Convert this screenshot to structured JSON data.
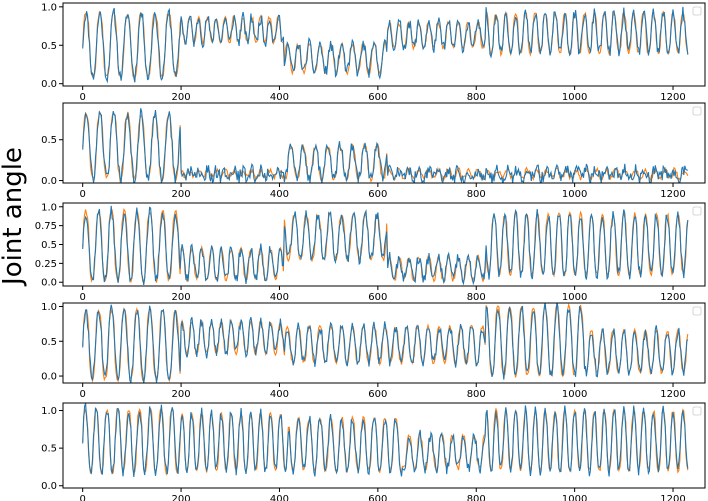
{
  "figure": {
    "ylabel": "Joint angle"
  },
  "colors": {
    "series_blue": "#1f77b4",
    "series_orange": "#ff7f0e",
    "axes": "#000000",
    "background": "#ffffff"
  },
  "chart_data": [
    {
      "type": "line",
      "panel": 1,
      "xlim": [
        -40,
        1265
      ],
      "ylim": [
        -0.03,
        1.05
      ],
      "xticks": [
        0,
        200,
        400,
        600,
        800,
        1000,
        1200
      ],
      "xtick_labels": [
        "0",
        "200",
        "400",
        "600",
        "800",
        "1000",
        "1200"
      ],
      "yticks": [
        0.0,
        0.5,
        1.0
      ],
      "ytick_labels": [
        "0.0",
        "0.5",
        "1.0"
      ],
      "legend": "top-right",
      "segments": [
        {
          "from": 0,
          "to": 200,
          "period": 28,
          "center": 0.5,
          "amp": 0.42,
          "phase": 0
        },
        {
          "from": 200,
          "to": 410,
          "period": 18,
          "center": 0.7,
          "amp": 0.16,
          "phase": 1
        },
        {
          "from": 410,
          "to": 620,
          "period": 22,
          "center": 0.33,
          "amp": 0.18,
          "phase": 2
        },
        {
          "from": 620,
          "to": 820,
          "period": 20,
          "center": 0.63,
          "amp": 0.16,
          "phase": 0.5
        },
        {
          "from": 820,
          "to": 1230,
          "period": 20,
          "center": 0.66,
          "amp": 0.26,
          "phase": 1.5
        }
      ],
      "series": [
        {
          "name": "blue",
          "values": [
            0.38,
            0.1,
            0.9,
            0.8,
            0.45,
            0.88,
            0.2,
            0.65,
            0.72,
            0.42,
            0.33,
            0.41,
            0.76,
            0.81,
            0.5,
            0.58,
            0.54,
            0.66,
            0.61,
            0.78,
            0.7
          ]
        },
        {
          "name": "orange",
          "values": [
            0.05,
            0.12,
            0.95,
            0.05,
            0.98,
            0.1,
            1.0,
            0.84,
            0.88,
            0.04,
            0.08,
            0.6,
            0.86,
            0.78,
            0.7,
            0.0,
            0.55,
            0.98,
            0.4,
            0.92,
            0.72
          ]
        }
      ]
    },
    {
      "type": "line",
      "panel": 2,
      "xlim": [
        -40,
        1265
      ],
      "ylim": [
        -0.03,
        0.95
      ],
      "xticks": [
        0,
        200,
        400,
        600,
        800,
        1000,
        1200
      ],
      "xtick_labels": [
        "0",
        "200",
        "400",
        "600",
        "800",
        "1000",
        "1200"
      ],
      "yticks": [
        0.0,
        0.5
      ],
      "ytick_labels": [
        "0.0",
        "0.5"
      ],
      "legend": "top-right",
      "segments": [
        {
          "from": 0,
          "to": 200,
          "period": 28,
          "center": 0.42,
          "amp": 0.4,
          "phase": 0
        },
        {
          "from": 200,
          "to": 410,
          "period": 18,
          "center": 0.08,
          "amp": 0.04,
          "phase": 1
        },
        {
          "from": 410,
          "to": 620,
          "period": 25,
          "center": 0.22,
          "amp": 0.2,
          "phase": 2
        },
        {
          "from": 620,
          "to": 1230,
          "period": 20,
          "center": 0.08,
          "amp": 0.05,
          "phase": 0.5
        }
      ],
      "series": [
        {
          "name": "blue",
          "values": [
            0.15,
            0.7,
            0.8,
            0.75,
            0.1,
            0.14,
            0.09,
            0.3,
            0.25,
            0.2,
            0.12,
            0.15,
            0.13,
            0.18,
            0.16,
            0.12,
            0.11,
            0.2,
            0.13,
            0.1,
            0.15
          ]
        },
        {
          "name": "orange",
          "values": [
            0.1,
            0.85,
            0.88,
            0.85,
            0.03,
            0.05,
            0.02,
            0.45,
            0.48,
            0.5,
            0.05,
            0.04,
            0.03,
            0.05,
            0.04,
            0.02,
            0.03,
            0.05,
            0.04,
            0.03,
            0.05
          ]
        }
      ]
    },
    {
      "type": "line",
      "panel": 3,
      "xlim": [
        -40,
        1265
      ],
      "ylim": [
        -0.05,
        1.05
      ],
      "xticks": [
        0,
        200,
        400,
        600,
        800,
        1000,
        1200
      ],
      "xtick_labels": [
        "0",
        "200",
        "400",
        "600",
        "800",
        "1000",
        "1200"
      ],
      "yticks": [
        0.0,
        0.25,
        0.5,
        0.75,
        1.0
      ],
      "ytick_labels": [
        "0.0",
        "0.25",
        "0.5",
        "0.75",
        "1.0"
      ],
      "legend": "top-right",
      "segments": [
        {
          "from": 0,
          "to": 200,
          "period": 26,
          "center": 0.48,
          "amp": 0.46,
          "phase": 0
        },
        {
          "from": 200,
          "to": 410,
          "period": 20,
          "center": 0.24,
          "amp": 0.2,
          "phase": 1
        },
        {
          "from": 410,
          "to": 620,
          "period": 24,
          "center": 0.6,
          "amp": 0.3,
          "phase": 2
        },
        {
          "from": 620,
          "to": 820,
          "period": 20,
          "center": 0.18,
          "amp": 0.15,
          "phase": 0.5
        },
        {
          "from": 820,
          "to": 1230,
          "period": 22,
          "center": 0.5,
          "amp": 0.4,
          "phase": 1.5
        }
      ],
      "series": [
        {
          "name": "blue",
          "values": [
            0.7,
            0.05,
            0.85,
            0.1,
            0.95,
            0.3,
            0.1,
            0.2,
            0.15,
            0.9,
            0.6,
            0.75,
            0.35,
            0.15,
            0.1,
            0.98,
            0.6,
            0.85,
            0.2,
            0.8,
            0.15
          ]
        },
        {
          "name": "orange",
          "values": [
            0.6,
            0.0,
            1.0,
            0.02,
            1.0,
            0.45,
            0.0,
            0.4,
            0.05,
            1.0,
            0.8,
            0.9,
            0.4,
            0.0,
            0.05,
            1.0,
            0.02,
            1.0,
            0.0,
            0.95,
            0.1
          ]
        }
      ]
    },
    {
      "type": "line",
      "panel": 4,
      "xlim": [
        -40,
        1265
      ],
      "ylim": [
        -0.1,
        1.05
      ],
      "xticks": [
        0,
        200,
        400,
        600,
        800,
        1000,
        1200
      ],
      "xtick_labels": [
        "0",
        "200",
        "400",
        "600",
        "800",
        "1000",
        "1200"
      ],
      "yticks": [
        0.0,
        0.5,
        1.0
      ],
      "ytick_labels": [
        "0.0",
        "0.5",
        "1.0"
      ],
      "legend": "top-right",
      "segments": [
        {
          "from": 0,
          "to": 200,
          "period": 26,
          "center": 0.45,
          "amp": 0.5,
          "phase": 0
        },
        {
          "from": 200,
          "to": 410,
          "period": 20,
          "center": 0.55,
          "amp": 0.22,
          "phase": 1
        },
        {
          "from": 410,
          "to": 820,
          "period": 22,
          "center": 0.45,
          "amp": 0.26,
          "phase": 2
        },
        {
          "from": 820,
          "to": 1020,
          "period": 24,
          "center": 0.5,
          "amp": 0.5,
          "phase": 0.5
        },
        {
          "from": 1020,
          "to": 1230,
          "period": 22,
          "center": 0.35,
          "amp": 0.3,
          "phase": 1.5
        }
      ],
      "series": [
        {
          "name": "blue",
          "values": [
            0.2,
            0.95,
            0.0,
            0.9,
            0.15,
            0.7,
            0.3,
            0.65,
            0.45,
            0.2,
            0.5,
            0.3,
            0.6,
            0.25,
            0.55,
            0.4,
            0.95,
            0.05,
            0.9,
            0.4,
            0.5
          ]
        },
        {
          "name": "orange",
          "values": [
            0.05,
            1.0,
            -0.05,
            1.0,
            0.0,
            0.8,
            0.25,
            0.75,
            0.25,
            0.1,
            0.6,
            0.2,
            0.7,
            0.2,
            0.65,
            0.45,
            1.0,
            -0.05,
            1.0,
            0.3,
            0.55
          ]
        }
      ]
    },
    {
      "type": "line",
      "panel": 5,
      "xlim": [
        -40,
        1265
      ],
      "ylim": [
        -0.03,
        1.1
      ],
      "xticks": [
        0,
        200,
        400,
        600,
        800,
        1000,
        1200
      ],
      "xtick_labels": [
        "0",
        "200",
        "400",
        "600",
        "800",
        "1000",
        "1200"
      ],
      "yticks": [
        0.0,
        0.5,
        1.0
      ],
      "ytick_labels": [
        "0.0",
        "0.5",
        "1.0"
      ],
      "legend": "top-right",
      "segments": [
        {
          "from": 0,
          "to": 200,
          "period": 22,
          "center": 0.6,
          "amp": 0.42,
          "phase": 0
        },
        {
          "from": 200,
          "to": 420,
          "period": 20,
          "center": 0.58,
          "amp": 0.38,
          "phase": 1
        },
        {
          "from": 420,
          "to": 650,
          "period": 22,
          "center": 0.55,
          "amp": 0.35,
          "phase": 2
        },
        {
          "from": 650,
          "to": 820,
          "period": 22,
          "center": 0.45,
          "amp": 0.22,
          "phase": 0.5
        },
        {
          "from": 820,
          "to": 1230,
          "period": 20,
          "center": 0.6,
          "amp": 0.4,
          "phase": 1.5
        }
      ],
      "series": [
        {
          "name": "blue",
          "values": [
            0.35,
            1.05,
            0.2,
            1.0,
            0.3,
            0.9,
            0.3,
            0.9,
            0.15,
            0.85,
            0.1,
            0.85,
            0.3,
            0.7,
            0.35,
            0.6,
            0.2,
            0.95,
            1.05,
            0.3,
            0.85
          ]
        },
        {
          "name": "orange",
          "values": [
            0.25,
            1.08,
            0.1,
            1.05,
            0.15,
            1.0,
            0.0,
            1.0,
            0.05,
            1.0,
            0.0,
            0.95,
            0.2,
            0.75,
            0.3,
            0.7,
            0.15,
            1.0,
            1.1,
            0.2,
            0.95
          ]
        }
      ]
    }
  ]
}
